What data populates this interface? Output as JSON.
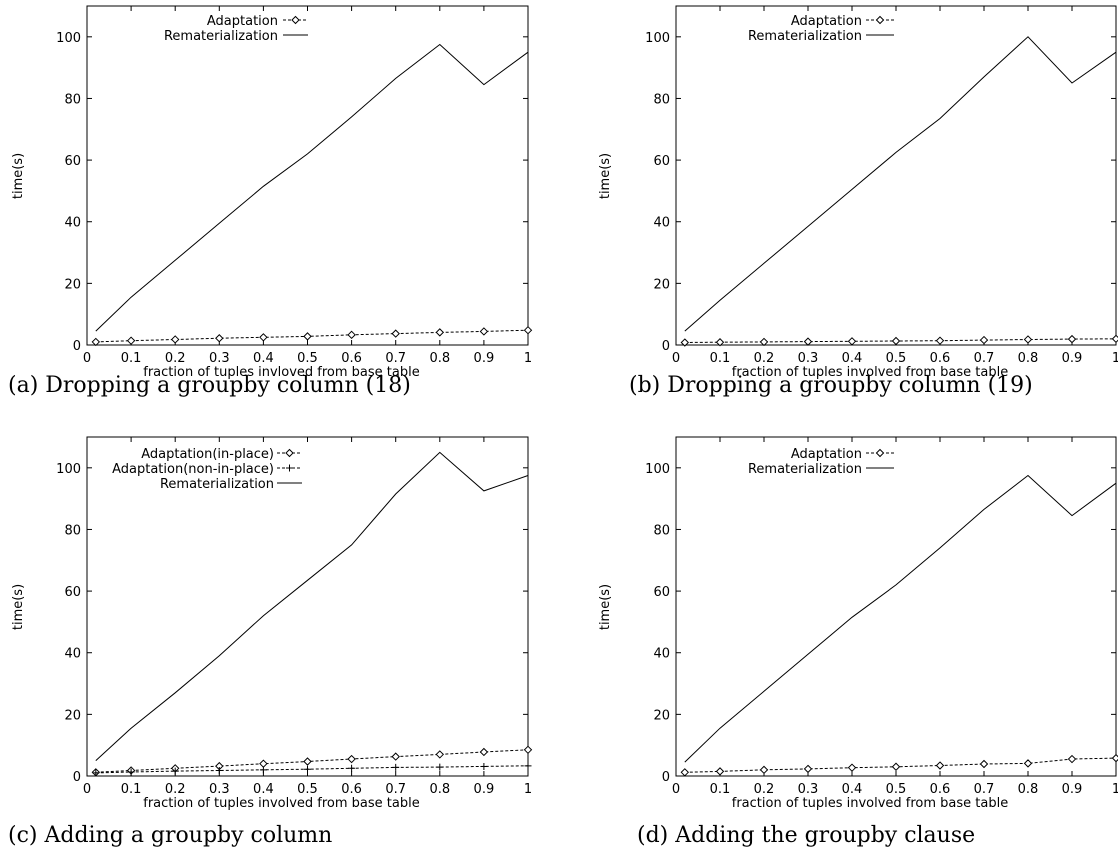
{
  "chart_data": [
    {
      "type": "line",
      "caption": "(a) Dropping a groupby column (18)",
      "xlabel": "fraction of tuples invloved from base table",
      "ylabel": "time(s)",
      "xlim": [
        0,
        1
      ],
      "ylim": [
        0,
        110
      ],
      "xticks": [
        "0",
        "0.1",
        "0.2",
        "0.3",
        "0.4",
        "0.5",
        "0.6",
        "0.7",
        "0.8",
        "0.9",
        "1"
      ],
      "yticks": [
        "0",
        "20",
        "40",
        "60",
        "80",
        "100"
      ],
      "legend_position": "top-left",
      "x": [
        0.02,
        0.1,
        0.2,
        0.3,
        0.4,
        0.5,
        0.6,
        0.7,
        0.8,
        0.9,
        1.0
      ],
      "series": [
        {
          "name": "Adaptation",
          "style": "dashed-diamond",
          "values": [
            1.0,
            1.4,
            1.8,
            2.2,
            2.5,
            2.8,
            3.3,
            3.7,
            4.1,
            4.4,
            4.8
          ]
        },
        {
          "name": "Rematerialization",
          "style": "solid",
          "values": [
            4.5,
            15.5,
            27.5,
            39.5,
            51.5,
            62.0,
            74.0,
            86.5,
            97.5,
            84.5,
            95.0
          ]
        }
      ]
    },
    {
      "type": "line",
      "caption": "(b) Dropping a groupby column (19)",
      "xlabel": "fraction of tuples involved from base table",
      "ylabel": "time(s)",
      "xlim": [
        0,
        1
      ],
      "ylim": [
        0,
        110
      ],
      "xticks": [
        "0",
        "0.1",
        "0.2",
        "0.3",
        "0.4",
        "0.5",
        "0.6",
        "0.7",
        "0.8",
        "0.9",
        "1"
      ],
      "yticks": [
        "0",
        "20",
        "40",
        "60",
        "80",
        "100"
      ],
      "legend_position": "top-left",
      "x": [
        0.02,
        0.1,
        0.2,
        0.3,
        0.4,
        0.5,
        0.6,
        0.7,
        0.8,
        0.9,
        1.0
      ],
      "series": [
        {
          "name": "Adaptation",
          "style": "dashed-diamond",
          "values": [
            0.8,
            0.9,
            1.0,
            1.1,
            1.2,
            1.3,
            1.4,
            1.6,
            1.8,
            1.9,
            2.0
          ]
        },
        {
          "name": "Rematerialization",
          "style": "solid",
          "values": [
            4.5,
            14.5,
            26.5,
            38.5,
            50.5,
            62.5,
            73.5,
            87.0,
            100.0,
            85.0,
            95.0
          ]
        }
      ]
    },
    {
      "type": "line",
      "caption": "(c) Adding a groupby column",
      "xlabel": "fraction of tuples involved from base table",
      "ylabel": "time(s)",
      "xlim": [
        0,
        1
      ],
      "ylim": [
        0,
        110
      ],
      "xticks": [
        "0",
        "0.1",
        "0.2",
        "0.3",
        "0.4",
        "0.5",
        "0.6",
        "0.7",
        "0.8",
        "0.9",
        "1"
      ],
      "yticks": [
        "0",
        "20",
        "40",
        "60",
        "80",
        "100"
      ],
      "legend_position": "top-left",
      "x": [
        0.02,
        0.1,
        0.2,
        0.3,
        0.4,
        0.5,
        0.6,
        0.7,
        0.8,
        0.9,
        1.0
      ],
      "series": [
        {
          "name": "Adaptation(in-place)",
          "style": "dashed-diamond",
          "values": [
            1.2,
            1.8,
            2.5,
            3.2,
            4.0,
            4.7,
            5.5,
            6.3,
            7.0,
            7.8,
            8.5
          ]
        },
        {
          "name": "Adaptation(non-in-place)",
          "style": "dashed-plus",
          "values": [
            1.0,
            1.3,
            1.6,
            1.8,
            2.0,
            2.2,
            2.5,
            2.8,
            2.9,
            3.1,
            3.3
          ]
        },
        {
          "name": "Rematerialization",
          "style": "solid",
          "values": [
            5.0,
            15.5,
            27.0,
            39.0,
            52.0,
            63.5,
            75.0,
            91.5,
            105.0,
            92.5,
            97.5
          ]
        }
      ]
    },
    {
      "type": "line",
      "caption": "(d) Adding the groupby clause",
      "xlabel": "fraction of tuples involved from base table",
      "ylabel": "time(s)",
      "xlim": [
        0,
        1
      ],
      "ylim": [
        0,
        110
      ],
      "xticks": [
        "0",
        "0.1",
        "0.2",
        "0.3",
        "0.4",
        "0.5",
        "0.6",
        "0.7",
        "0.8",
        "0.9",
        "1"
      ],
      "yticks": [
        "0",
        "20",
        "40",
        "60",
        "80",
        "100"
      ],
      "legend_position": "top-left",
      "x": [
        0.02,
        0.1,
        0.2,
        0.3,
        0.4,
        0.5,
        0.6,
        0.7,
        0.8,
        0.9,
        1.0
      ],
      "series": [
        {
          "name": "Adaptation",
          "style": "dashed-diamond",
          "values": [
            1.2,
            1.5,
            2.0,
            2.3,
            2.7,
            3.0,
            3.4,
            3.9,
            4.1,
            5.5,
            5.8
          ]
        },
        {
          "name": "Rematerialization",
          "style": "solid",
          "values": [
            4.5,
            15.5,
            27.5,
            39.5,
            51.5,
            62.0,
            74.0,
            86.5,
            97.5,
            84.5,
            95.0
          ]
        }
      ]
    }
  ]
}
